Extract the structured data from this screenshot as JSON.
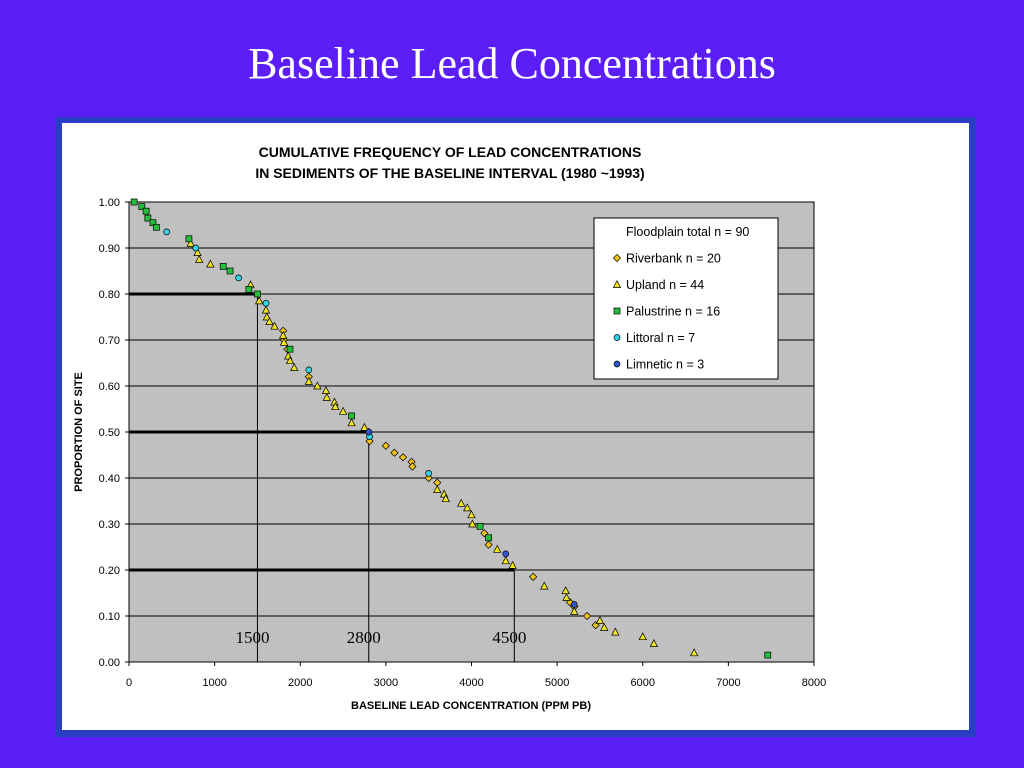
{
  "slide": {
    "title": "Baseline Lead Concentrations"
  },
  "chart_data": {
    "type": "scatter",
    "title_lines": [
      "CUMULATIVE FREQUENCY OF LEAD CONCENTRATIONS",
      "IN SEDIMENTS OF THE BASELINE INTERVAL (1980 ~1993)"
    ],
    "xlabel": "BASELINE LEAD CONCENTRATION (PPM PB)",
    "ylabel": "PROPORTION OF SITE",
    "xlim": [
      0,
      8000
    ],
    "ylim": [
      0,
      1
    ],
    "x_ticks": [
      "0",
      "1000",
      "2000",
      "3000",
      "4000",
      "5000",
      "6000",
      "7000",
      "8000"
    ],
    "y_ticks": [
      "0.00",
      "0.10",
      "0.20",
      "0.30",
      "0.40",
      "0.50",
      "0.60",
      "0.70",
      "0.80",
      "0.90",
      "1.00"
    ],
    "grid": "horizontal",
    "legend_position": "top-right",
    "legend_header": "Floodplain total n = 90",
    "reference_lines": [
      {
        "x": 1500,
        "y": 0.8,
        "label": "1500"
      },
      {
        "x": 2800,
        "y": 0.5,
        "label": "2800"
      },
      {
        "x": 4500,
        "y": 0.2,
        "label": "4500"
      }
    ],
    "series": [
      {
        "name": "Riverbank n = 20",
        "marker": "diamond",
        "color": "#f0c21a",
        "x": [
          1800,
          1810,
          1850,
          2100,
          2800,
          2810,
          3000,
          3100,
          3200,
          3300,
          3310,
          3500,
          3600,
          4150,
          4200,
          4720,
          5150,
          5200,
          5350,
          5450
        ],
        "y": [
          0.72,
          0.7,
          0.68,
          0.62,
          0.5,
          0.48,
          0.47,
          0.455,
          0.445,
          0.435,
          0.425,
          0.4,
          0.39,
          0.28,
          0.255,
          0.185,
          0.13,
          0.12,
          0.1,
          0.08
        ]
      },
      {
        "name": "Upland n = 44",
        "marker": "triangle",
        "color": "#f0e41a",
        "x": [
          720,
          800,
          820,
          950,
          1420,
          1520,
          1600,
          1610,
          1640,
          1700,
          1800,
          1810,
          1860,
          1880,
          1930,
          2100,
          2200,
          2300,
          2310,
          2400,
          2410,
          2500,
          2600,
          2750,
          3600,
          3680,
          3700,
          3880,
          3950,
          4000,
          4010,
          4300,
          4400,
          4480,
          4850,
          5100,
          5110,
          5200,
          5500,
          5550,
          5680,
          6000,
          6130,
          6600
        ],
        "y": [
          0.91,
          0.89,
          0.875,
          0.865,
          0.82,
          0.785,
          0.765,
          0.75,
          0.74,
          0.73,
          0.71,
          0.695,
          0.665,
          0.655,
          0.64,
          0.61,
          0.6,
          0.59,
          0.575,
          0.565,
          0.555,
          0.545,
          0.52,
          0.51,
          0.375,
          0.365,
          0.355,
          0.345,
          0.335,
          0.32,
          0.3,
          0.245,
          0.22,
          0.21,
          0.165,
          0.155,
          0.14,
          0.11,
          0.09,
          0.075,
          0.065,
          0.055,
          0.04,
          0.02
        ]
      },
      {
        "name": "Palustrine n = 16",
        "marker": "square",
        "color": "#22c03a",
        "x": [
          60,
          150,
          200,
          220,
          280,
          320,
          700,
          1100,
          1180,
          1400,
          1500,
          1880,
          2600,
          4100,
          4200,
          7460
        ],
        "y": [
          1.0,
          0.99,
          0.98,
          0.965,
          0.955,
          0.945,
          0.92,
          0.86,
          0.85,
          0.81,
          0.8,
          0.68,
          0.535,
          0.295,
          0.27,
          0.015
        ]
      },
      {
        "name": "Littoral n = 7",
        "marker": "circle",
        "color": "#33d6e8",
        "x": [
          440,
          780,
          1280,
          1600,
          2100,
          2810,
          3500
        ],
        "y": [
          0.935,
          0.9,
          0.835,
          0.78,
          0.635,
          0.49,
          0.41
        ]
      },
      {
        "name": "Limnetic n = 3",
        "marker": "circle",
        "color": "#3355cc",
        "x": [
          2800,
          4400,
          5200
        ],
        "y": [
          0.5,
          0.235,
          0.125
        ]
      }
    ]
  }
}
